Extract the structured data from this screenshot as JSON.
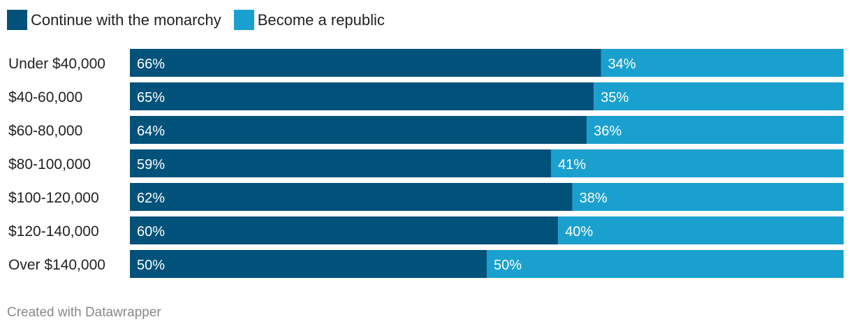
{
  "chart_data": {
    "type": "bar",
    "orientation": "horizontal",
    "stacked": true,
    "categories": [
      "Under $40,000",
      "$40-60,000",
      "$60-80,000",
      "$80-100,000",
      "$100-120,000",
      "$120-140,000",
      "Over $140,000"
    ],
    "series": [
      {
        "name": "Continue with the monarchy",
        "color": "#00527a",
        "values": [
          66,
          65,
          64,
          59,
          62,
          60,
          50
        ]
      },
      {
        "name": "Become a republic",
        "color": "#1aa0cf",
        "values": [
          34,
          35,
          36,
          41,
          38,
          40,
          50
        ]
      }
    ],
    "value_suffix": "%",
    "xlim": [
      0,
      100
    ],
    "legend_position": "top-left",
    "grid": false
  },
  "footer": {
    "credit": "Created with Datawrapper"
  }
}
